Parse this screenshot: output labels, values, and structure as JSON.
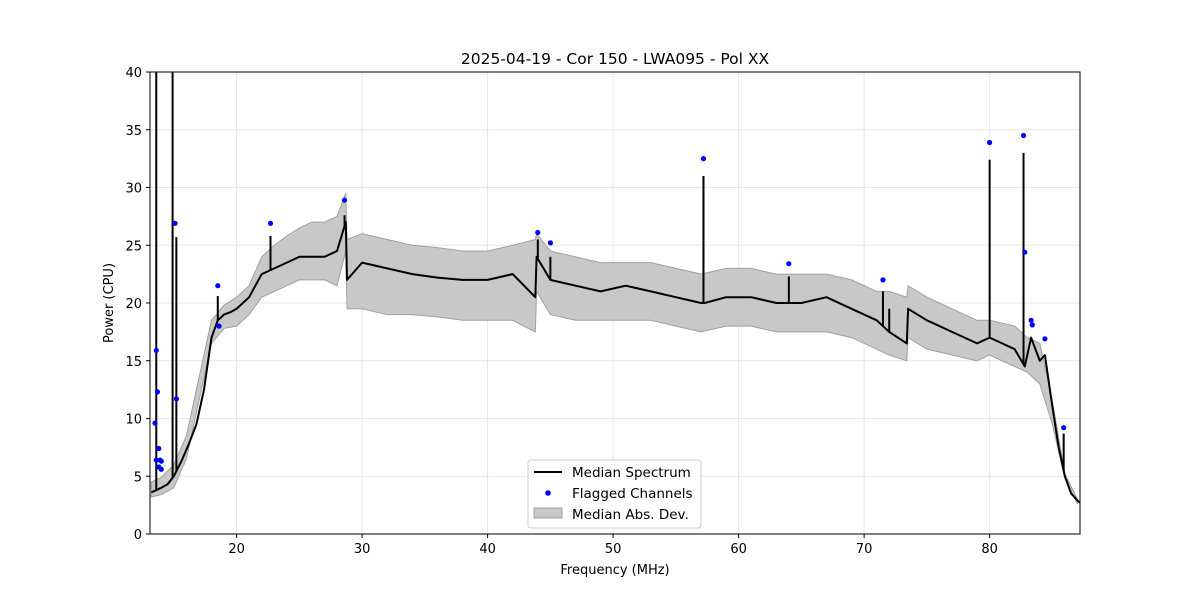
{
  "chart_data": {
    "type": "line",
    "title": "2025-04-19 - Cor 150 - LWA095 - Pol XX",
    "xlabel": "Frequency (MHz)",
    "ylabel": "Power (CPU)",
    "xlim": [
      13.1,
      87.2
    ],
    "ylim": [
      0,
      40
    ],
    "xticks": [
      20,
      30,
      40,
      50,
      60,
      70,
      80
    ],
    "yticks": [
      0,
      5,
      10,
      15,
      20,
      25,
      30,
      35,
      40
    ],
    "grid": true,
    "legend_position": "lower-center",
    "legend": [
      {
        "key": "median",
        "label": "Median Spectrum"
      },
      {
        "key": "flagged",
        "label": "Flagged Channels"
      },
      {
        "key": "mad",
        "label": "Median Abs. Dev."
      }
    ],
    "colors": {
      "median": "#000000",
      "flagged": "#0000ff",
      "band_fill": "#c8c8c8",
      "band_edge": "#a0a0a0",
      "grid": "#e6e6e6"
    },
    "series": [
      {
        "name": "Median Spectrum",
        "x": [
          13.2,
          13.6,
          14.0,
          14.5,
          15.0,
          15.6,
          16.2,
          16.8,
          17.4,
          18.0,
          18.5,
          19.0,
          19.5,
          20.0,
          21.0,
          22.0,
          23.0,
          24.0,
          25.0,
          26.0,
          27.0,
          28.0,
          28.7,
          28.8,
          30.0,
          32.0,
          34.0,
          36.0,
          38.0,
          40.0,
          42.0,
          43.8,
          43.9,
          45.0,
          47.0,
          49.0,
          51.0,
          53.0,
          55.0,
          57.0,
          57.3,
          59.0,
          61.0,
          63.0,
          65.0,
          67.0,
          69.0,
          71.0,
          72.0,
          73.4,
          73.5,
          75.0,
          77.0,
          79.0,
          80.0,
          81.0,
          82.0,
          82.8,
          83.3,
          84.0,
          84.4,
          85.0,
          85.5,
          86.0,
          86.5,
          87.0,
          87.2
        ],
        "y": [
          3.6,
          3.8,
          4.0,
          4.3,
          5.0,
          6.3,
          7.8,
          9.5,
          12.5,
          17.0,
          18.5,
          19.0,
          19.2,
          19.5,
          20.5,
          22.5,
          23.0,
          23.5,
          24.0,
          24.0,
          24.0,
          24.5,
          27.0,
          22.0,
          23.5,
          23.0,
          22.5,
          22.2,
          22.0,
          22.0,
          22.5,
          20.5,
          24.0,
          22.0,
          21.5,
          21.0,
          21.5,
          21.0,
          20.5,
          20.0,
          20.0,
          20.5,
          20.5,
          20.0,
          20.0,
          20.5,
          19.5,
          18.5,
          17.5,
          16.5,
          19.5,
          18.5,
          17.5,
          16.5,
          17.0,
          16.5,
          16.0,
          14.5,
          17.0,
          15.0,
          15.5,
          11.0,
          7.5,
          5.0,
          3.5,
          2.9,
          2.7
        ],
        "spikes": [
          {
            "x": 13.6,
            "y": 40
          },
          {
            "x": 14.9,
            "y": 40
          },
          {
            "x": 15.2,
            "y": 25.7
          },
          {
            "x": 18.5,
            "y": 20.6
          },
          {
            "x": 22.7,
            "y": 25.8
          },
          {
            "x": 28.6,
            "y": 27.6
          },
          {
            "x": 44.0,
            "y": 25.5
          },
          {
            "x": 45.0,
            "y": 24.0
          },
          {
            "x": 57.2,
            "y": 31.0
          },
          {
            "x": 64.0,
            "y": 22.3
          },
          {
            "x": 71.5,
            "y": 21.0
          },
          {
            "x": 72.0,
            "y": 19.5
          },
          {
            "x": 80.0,
            "y": 32.4
          },
          {
            "x": 82.7,
            "y": 33.0
          },
          {
            "x": 85.9,
            "y": 8.7
          }
        ]
      },
      {
        "name": "Median Abs. Dev.",
        "x": [
          13.2,
          14.0,
          15.0,
          16.0,
          17.0,
          18.0,
          19.0,
          20.0,
          21.0,
          22.0,
          23.0,
          24.0,
          25.0,
          26.0,
          27.0,
          28.0,
          28.7,
          28.8,
          30.0,
          32.0,
          34.0,
          36.0,
          38.0,
          40.0,
          42.0,
          43.8,
          43.9,
          45.0,
          47.0,
          49.0,
          51.0,
          53.0,
          55.0,
          57.0,
          59.0,
          61.0,
          63.0,
          65.0,
          67.0,
          69.0,
          71.0,
          72.0,
          73.4,
          73.5,
          75.0,
          77.0,
          79.0,
          80.0,
          82.0,
          83.0,
          84.0,
          85.0,
          86.0,
          87.0
        ],
        "upper": [
          4.5,
          4.9,
          6.0,
          8.5,
          13.5,
          18.5,
          19.8,
          20.5,
          21.5,
          24.0,
          25.0,
          25.8,
          26.5,
          27.0,
          27.0,
          27.5,
          29.5,
          25.5,
          26.0,
          25.5,
          25.0,
          24.8,
          24.5,
          24.5,
          25.0,
          25.5,
          26.0,
          24.5,
          24.0,
          23.5,
          23.5,
          23.5,
          23.0,
          22.5,
          23.0,
          23.0,
          22.5,
          22.5,
          22.5,
          22.0,
          21.0,
          21.0,
          20.5,
          21.5,
          20.5,
          19.5,
          18.5,
          18.5,
          18.0,
          17.0,
          16.5,
          11.5,
          5.2,
          3.0
        ],
        "lower": [
          3.2,
          3.4,
          4.0,
          6.5,
          11.5,
          16.5,
          17.8,
          18.0,
          19.0,
          20.5,
          21.0,
          21.5,
          22.0,
          22.0,
          22.0,
          21.5,
          24.5,
          19.5,
          19.5,
          19.0,
          19.0,
          18.8,
          18.5,
          18.5,
          18.5,
          17.5,
          21.0,
          19.0,
          18.5,
          18.5,
          18.5,
          18.5,
          18.0,
          17.5,
          18.0,
          18.0,
          17.5,
          17.5,
          17.5,
          17.0,
          16.0,
          15.5,
          15.0,
          17.0,
          16.0,
          15.5,
          15.0,
          15.5,
          14.5,
          14.0,
          13.0,
          9.5,
          4.8,
          2.6
        ]
      },
      {
        "name": "Flagged Channels",
        "x": [
          13.5,
          13.6,
          13.6,
          13.7,
          13.8,
          13.8,
          13.9,
          14.0,
          14.0,
          15.1,
          15.2,
          18.5,
          18.6,
          22.7,
          28.6,
          44.0,
          45.0,
          57.2,
          64.0,
          71.5,
          80.0,
          82.7,
          82.8,
          83.3,
          83.4,
          84.4,
          85.9
        ],
        "y": [
          9.6,
          15.9,
          6.4,
          12.3,
          7.4,
          5.8,
          6.4,
          6.3,
          5.6,
          26.9,
          11.7,
          21.5,
          18.0,
          26.9,
          28.9,
          26.1,
          25.2,
          32.5,
          23.4,
          22.0,
          33.9,
          34.5,
          24.4,
          18.5,
          18.1,
          16.9,
          9.2
        ]
      }
    ]
  }
}
